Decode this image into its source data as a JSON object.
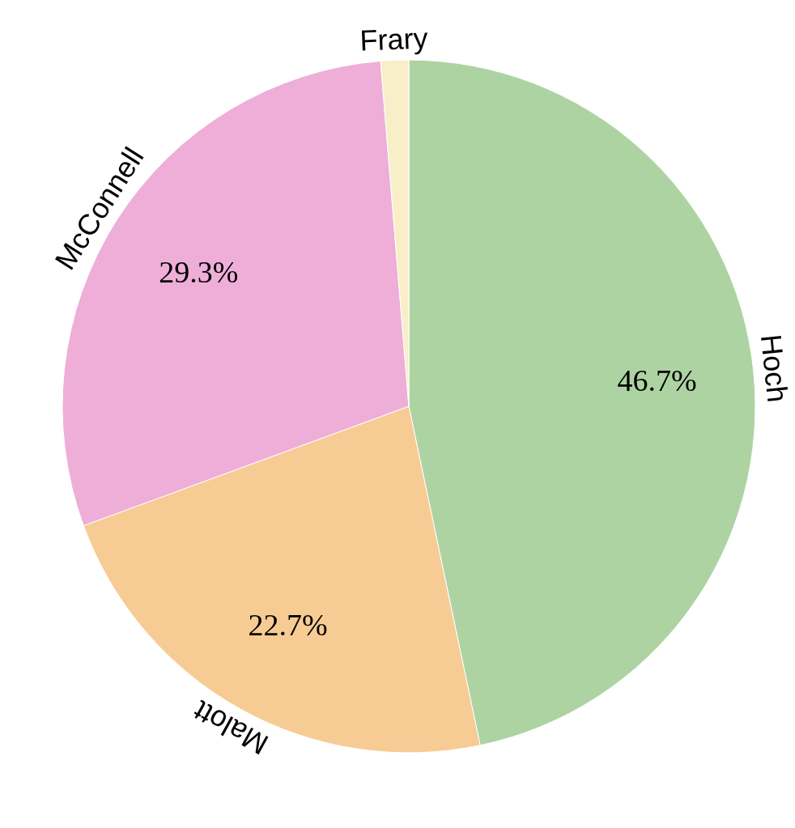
{
  "chart_data": {
    "type": "pie",
    "categories": [
      "Hoch",
      "Malott",
      "McConnell",
      "Frary"
    ],
    "values": [
      46.7,
      22.7,
      29.3,
      1.3
    ],
    "colors": [
      "#aed3a3",
      "#f7cb94",
      "#eeaed8",
      "#f8efc9"
    ],
    "value_labels": [
      "46.7%",
      "22.7%",
      "29.3%",
      null
    ],
    "legend": false
  }
}
